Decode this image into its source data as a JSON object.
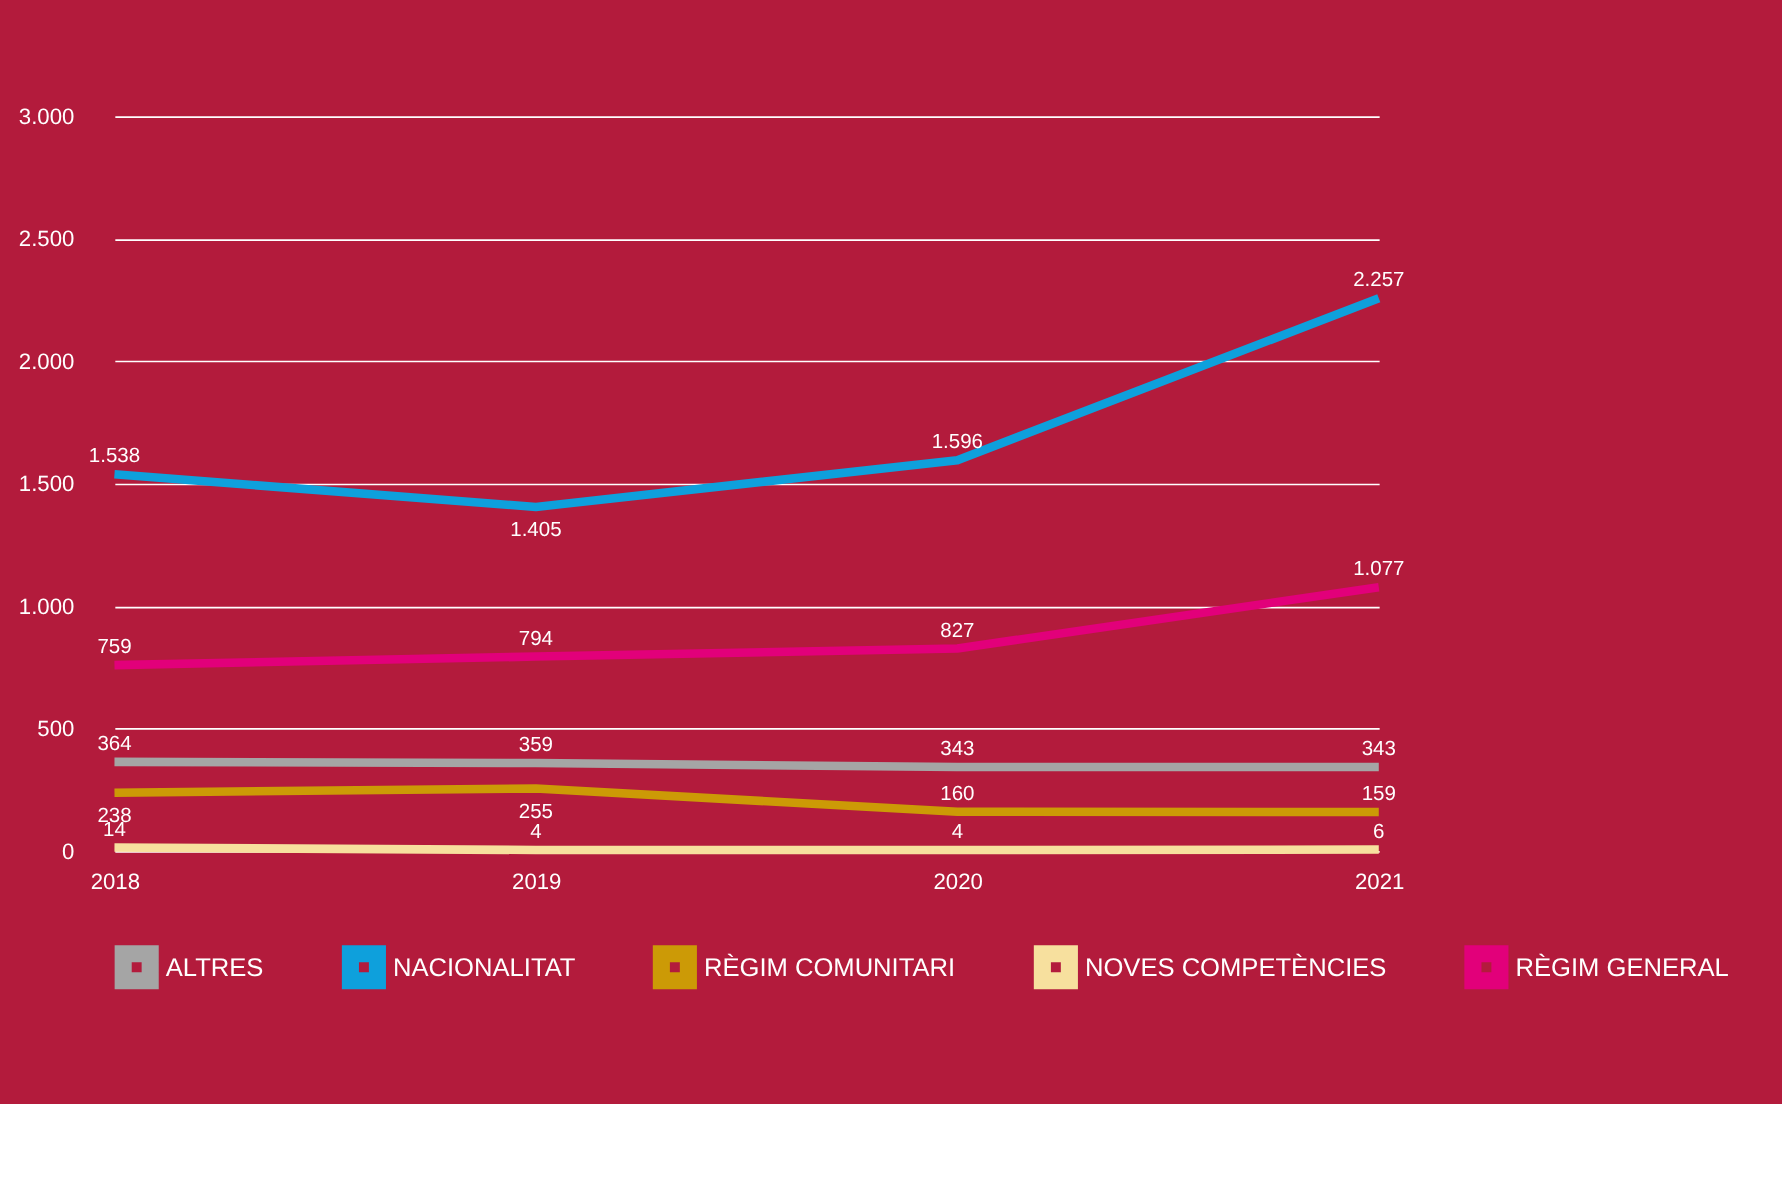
{
  "chart_data": {
    "type": "line",
    "categories": [
      "2018",
      "2019",
      "2020",
      "2021"
    ],
    "series": [
      {
        "name": "ALTRES",
        "color": "#a5a5a5",
        "values": [
          364,
          359,
          343,
          343
        ],
        "value_labels": [
          "364",
          "359",
          "343",
          "343"
        ]
      },
      {
        "name": "NACIONALITAT",
        "color": "#0ea0dc",
        "values": [
          1538,
          1405,
          1596,
          2257
        ],
        "value_labels": [
          "1.538",
          "1.405",
          "1.596",
          "2.257"
        ]
      },
      {
        "name": "RÈGIM COMUNITARI",
        "color": "#cc9a06",
        "values": [
          238,
          255,
          160,
          159
        ],
        "value_labels": [
          "238",
          "255",
          "160",
          "159"
        ]
      },
      {
        "name": "NOVES COMPETÈNCIES",
        "color": "#f7e09e",
        "values": [
          14,
          4,
          4,
          6
        ],
        "value_labels": [
          "14",
          "4",
          "4",
          "6"
        ]
      },
      {
        "name": "RÈGIM GENERAL",
        "color": "#e2007a",
        "values": [
          759,
          794,
          827,
          1077
        ],
        "value_labels": [
          "759",
          "794",
          "827",
          "1.077"
        ]
      }
    ],
    "ylim": [
      0,
      3000
    ],
    "yticks": [
      0,
      500,
      {
        "value": 1000,
        "label": "1.000"
      },
      {
        "value": 1500,
        "label": "1.500"
      },
      {
        "value": 2000,
        "label": "2.000"
      },
      {
        "value": 2500,
        "label": "2.500"
      },
      {
        "value": 3000,
        "label": "3.000"
      }
    ],
    "grid": "y",
    "legend": "bottom",
    "marker": "none",
    "line_style": "solid"
  }
}
